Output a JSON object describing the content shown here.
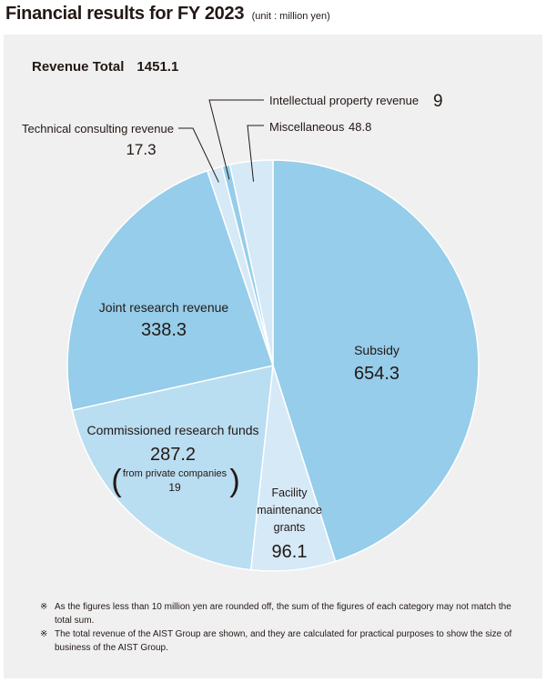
{
  "header": {
    "title": "Financial results for FY 2023",
    "unit": "(unit : million yen)"
  },
  "revenue_total": {
    "label": "Revenue Total",
    "value": "1451.1"
  },
  "chart_data": {
    "type": "pie",
    "title": "Financial results for FY 2023",
    "unit": "million yen",
    "total": 1451.1,
    "slices": [
      {
        "name": "Subsidy",
        "value": 654.3,
        "color": "#95cdea",
        "label_lines": [
          "Subsidy"
        ],
        "value_text": "654.3"
      },
      {
        "name": "Facility maintenance grants",
        "value": 96.1,
        "color": "#d5e9f6",
        "label_lines": [
          "Facility",
          "maintenance",
          "grants"
        ],
        "value_text": "96.1"
      },
      {
        "name": "Commissioned research funds",
        "value": 287.2,
        "color": "#b9ddf1",
        "label_lines": [
          "Commissioned research funds"
        ],
        "value_text": "287.2",
        "sub_label": "from private companies",
        "sub_value": "19"
      },
      {
        "name": "Joint research revenue",
        "value": 338.3,
        "color": "#95cdea",
        "label_lines": [
          "Joint research revenue"
        ],
        "value_text": "338.3"
      },
      {
        "name": "Technical consulting revenue",
        "value": 17.3,
        "color": "#d5e9f6",
        "label_lines": [
          "Technical consulting revenue"
        ],
        "value_text": "17.3"
      },
      {
        "name": "Intellectual property revenue",
        "value": 9,
        "color": "#95cdea",
        "label_lines": [
          "Intellectual property revenue"
        ],
        "value_text": "9"
      },
      {
        "name": "Miscellaneous",
        "value": 48.8,
        "color": "#d5e9f6",
        "label_lines": [
          "Miscellaneous"
        ],
        "value_text": "48.8"
      }
    ]
  },
  "notes": [
    {
      "mark": "※",
      "text": "As the figures less than 10 million yen are rounded off, the sum of the figures of each category may not match the total sum."
    },
    {
      "mark": "※",
      "text": "The total revenue of the AIST Group are shown, and they are calculated for practical purposes to show the size of business of the AIST Group."
    }
  ]
}
